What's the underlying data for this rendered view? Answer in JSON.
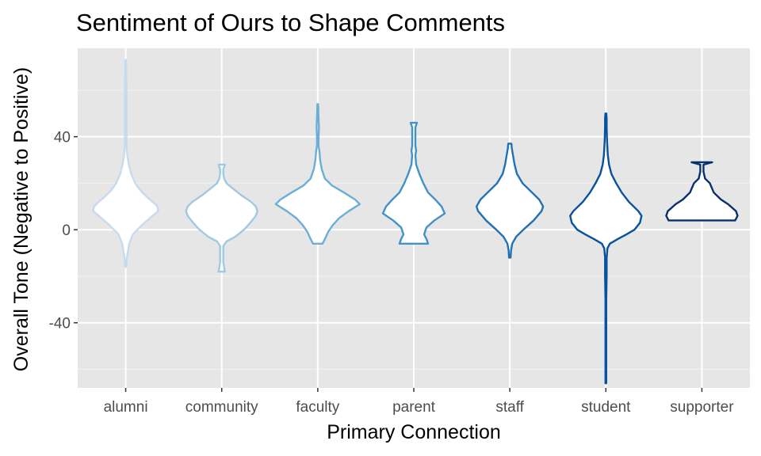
{
  "chart_data": {
    "type": "violin",
    "title": "Sentiment of Ours to Shape Comments",
    "xlabel": "Primary Connection",
    "ylabel": "Overall Tone (Negative to Positive)",
    "ylim": [
      -68,
      78
    ],
    "yticks": [
      -40,
      0,
      40
    ],
    "grid": true,
    "legend": "none",
    "categories": [
      "alumni",
      "community",
      "faculty",
      "parent",
      "staff",
      "student",
      "supporter"
    ],
    "series": [
      {
        "category": "alumni",
        "color": "#c6dbef",
        "profile": [
          [
            -16,
            0.5
          ],
          [
            -12,
            1.5
          ],
          [
            -6,
            4.5
          ],
          [
            -2,
            9.0
          ],
          [
            2,
            20.5
          ],
          [
            6,
            34.0
          ],
          [
            8,
            41.0
          ],
          [
            10,
            40.0
          ],
          [
            12,
            34.0
          ],
          [
            14,
            27.0
          ],
          [
            16,
            21.0
          ],
          [
            18,
            16.0
          ],
          [
            20,
            12.0
          ],
          [
            24,
            7.0
          ],
          [
            28,
            4.0
          ],
          [
            32,
            2.0
          ],
          [
            36,
            1.0
          ],
          [
            44,
            1.0
          ],
          [
            60,
            1.0
          ],
          [
            73,
            0.5
          ]
        ]
      },
      {
        "category": "community",
        "color": "#9ecae1",
        "profile": [
          [
            -18,
            4.0
          ],
          [
            -14,
            2.0
          ],
          [
            -10,
            2.0
          ],
          [
            -7,
            2.0
          ],
          [
            -5,
            6.0
          ],
          [
            -3,
            17.0
          ],
          [
            0,
            28.0
          ],
          [
            3,
            36.0
          ],
          [
            6,
            43.0
          ],
          [
            8,
            45.0
          ],
          [
            10,
            43.0
          ],
          [
            12,
            37.0
          ],
          [
            15,
            24.0
          ],
          [
            18,
            13.0
          ],
          [
            20,
            6.0
          ],
          [
            22,
            3.0
          ],
          [
            24,
            2.0
          ],
          [
            26,
            2.0
          ],
          [
            28,
            4.0
          ]
        ]
      },
      {
        "category": "faculty",
        "color": "#6baed6",
        "profile": [
          [
            -6,
            6.0
          ],
          [
            -4,
            9.0
          ],
          [
            -1,
            13.0
          ],
          [
            2,
            19.0
          ],
          [
            5,
            27.0
          ],
          [
            8,
            39.0
          ],
          [
            11,
            53.0
          ],
          [
            13,
            47.0
          ],
          [
            16,
            33.0
          ],
          [
            19,
            18.0
          ],
          [
            22,
            9.0
          ],
          [
            26,
            5.0
          ],
          [
            30,
            3.0
          ],
          [
            34,
            2.0
          ],
          [
            36,
            1.0
          ],
          [
            40,
            1.0
          ],
          [
            44,
            1.5
          ],
          [
            48,
            1.0
          ],
          [
            54,
            0.5
          ]
        ]
      },
      {
        "category": "parent",
        "color": "#4292c6",
        "profile": [
          [
            -6,
            18.0
          ],
          [
            -4,
            16.0
          ],
          [
            -2,
            13.0
          ],
          [
            1,
            16.0
          ],
          [
            4,
            26.0
          ],
          [
            7,
            39.0
          ],
          [
            10,
            35.0
          ],
          [
            13,
            27.0
          ],
          [
            16,
            18.0
          ],
          [
            20,
            12.0
          ],
          [
            24,
            7.0
          ],
          [
            28,
            3.0
          ],
          [
            32,
            2.0
          ],
          [
            34,
            3.0
          ],
          [
            36,
            2.0
          ],
          [
            40,
            2.0
          ],
          [
            44,
            2.0
          ],
          [
            46,
            4.0
          ]
        ]
      },
      {
        "category": "staff",
        "color": "#2171b5",
        "profile": [
          [
            -12,
            1.0
          ],
          [
            -9,
            1.5
          ],
          [
            -6,
            3.0
          ],
          [
            -3,
            8.0
          ],
          [
            0,
            17.0
          ],
          [
            4,
            30.0
          ],
          [
            8,
            40.0
          ],
          [
            10,
            42.0
          ],
          [
            13,
            37.0
          ],
          [
            16,
            28.0
          ],
          [
            20,
            16.0
          ],
          [
            24,
            9.0
          ],
          [
            28,
            6.0
          ],
          [
            32,
            4.0
          ],
          [
            35,
            2.5
          ],
          [
            37,
            2.0
          ]
        ]
      },
      {
        "category": "student",
        "color": "#08519c",
        "profile": [
          [
            -66,
            0.5
          ],
          [
            -50,
            0.5
          ],
          [
            -30,
            0.5
          ],
          [
            -20,
            1.0
          ],
          [
            -12,
            1.0
          ],
          [
            -8,
            2.0
          ],
          [
            -6,
            5.0
          ],
          [
            -4,
            15.0
          ],
          [
            -2,
            26.0
          ],
          [
            0,
            36.0
          ],
          [
            3,
            43.0
          ],
          [
            6,
            45.0
          ],
          [
            8,
            41.0
          ],
          [
            12,
            29.0
          ],
          [
            16,
            20.0
          ],
          [
            20,
            13.0
          ],
          [
            24,
            7.0
          ],
          [
            28,
            4.0
          ],
          [
            32,
            2.5
          ],
          [
            38,
            1.5
          ],
          [
            44,
            1.0
          ],
          [
            48,
            1.0
          ],
          [
            50,
            0.5
          ]
        ]
      },
      {
        "category": "supporter",
        "color": "#08306b",
        "profile": [
          [
            4,
            42.0
          ],
          [
            6,
            45.0
          ],
          [
            8,
            43.0
          ],
          [
            11,
            33.0
          ],
          [
            13,
            24.0
          ],
          [
            16,
            15.0
          ],
          [
            20,
            10.0
          ],
          [
            22,
            4.0
          ],
          [
            25,
            2.0
          ],
          [
            28,
            2.0
          ],
          [
            29,
            13.0
          ]
        ]
      }
    ]
  }
}
